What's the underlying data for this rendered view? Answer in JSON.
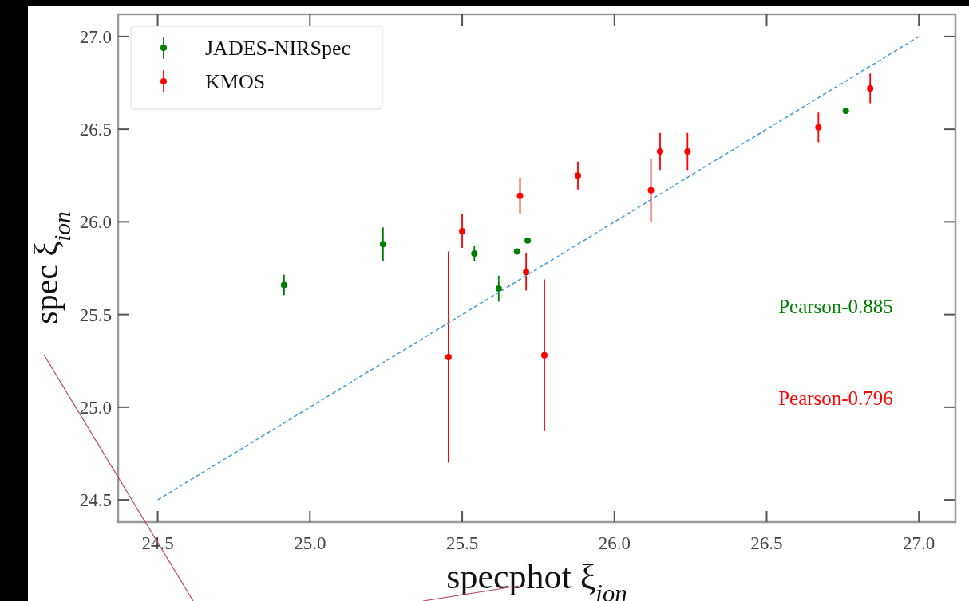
{
  "chart_data": {
    "type": "scatter",
    "xlabel": "specphot ξ$_{ion}$",
    "ylabel": "spec ξ$_{ion}$",
    "xlim": [
      24.37,
      27.12
    ],
    "ylim": [
      24.38,
      27.12
    ],
    "xticks": [
      24.5,
      {
        "value": 25,
        "label": "25.0"
      },
      25.5,
      {
        "value": 26,
        "label": "26.0"
      },
      26.5,
      {
        "value": 27,
        "label": "27.0"
      }
    ],
    "yticks": [
      24.5,
      {
        "value": 25,
        "label": "25.0"
      },
      25.5,
      {
        "value": 26,
        "label": "26.0"
      },
      26.5,
      {
        "value": 27,
        "label": "27.0"
      }
    ],
    "legend": "top left",
    "grid": false,
    "marker": "circle",
    "series": [
      {
        "name": "JADES-NIRSpec",
        "color": "#008000",
        "x": [
          24.915,
          25.24,
          25.54,
          25.62,
          25.68,
          25.715,
          26.76
        ],
        "values": [
          25.66,
          25.88,
          25.83,
          25.64,
          25.84,
          25.9,
          26.6
        ],
        "errors": [
          0.055,
          0.09,
          0.04,
          0.07,
          null,
          null,
          null
        ]
      },
      {
        "name": "KMOS",
        "color": "#ff0000",
        "x": [
          25.455,
          25.5,
          25.69,
          25.71,
          25.77,
          25.88,
          26.12,
          26.15,
          26.24,
          26.67,
          26.84
        ],
        "values": [
          25.27,
          25.95,
          26.14,
          25.73,
          25.28,
          26.25,
          26.17,
          26.38,
          26.38,
          26.51,
          26.72
        ],
        "errors": [
          0.57,
          0.09,
          0.1,
          0.1,
          0.41,
          0.075,
          0.17,
          0.1,
          0.1,
          0.08,
          0.08
        ]
      },
      {
        "type": "line",
        "color": "#4c9fd6",
        "line_style": "dashed",
        "marker": "none",
        "x": [
          24.5,
          27.0
        ],
        "values": [
          24.5,
          27.0
        ]
      }
    ],
    "annotations": [
      "Pearson-0.885",
      "Pearson-0.796"
    ]
  }
}
